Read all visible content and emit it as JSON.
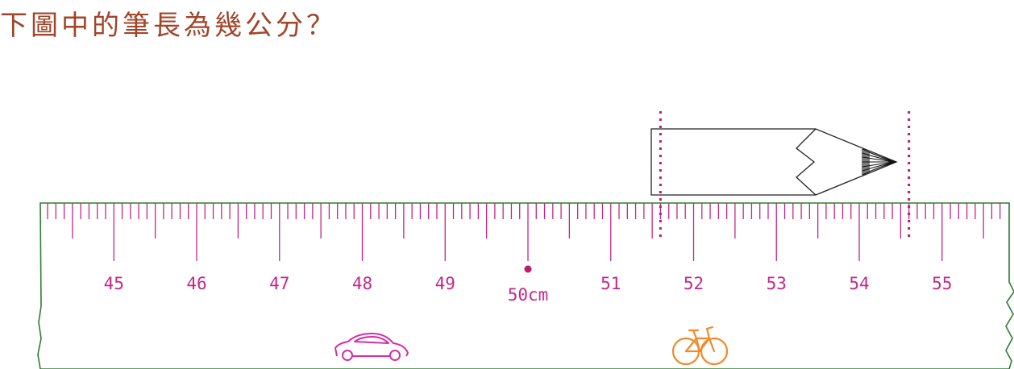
{
  "question": "下圖中的筆長為幾公分？",
  "ruler": {
    "start": 44,
    "end": 56,
    "labels": [
      "45",
      "46",
      "47",
      "48",
      "49",
      "50cm",
      "51",
      "52",
      "53",
      "54",
      "55"
    ],
    "label_values": [
      45,
      46,
      47,
      48,
      49,
      50,
      51,
      52,
      53,
      54,
      55
    ],
    "minor_divisions": 10
  },
  "pencil": {
    "start_value": 51.6,
    "end_value": 54.6
  },
  "icons": [
    "car-icon",
    "bicycle-icon"
  ],
  "colors": {
    "question": "#a0452a",
    "ruler_border": "#2e7d32",
    "ticks": "#c4278a",
    "marker": "#c21a6b",
    "car": "#d42fa6",
    "bicycle": "#f08a2c",
    "pencil": "#222222"
  }
}
